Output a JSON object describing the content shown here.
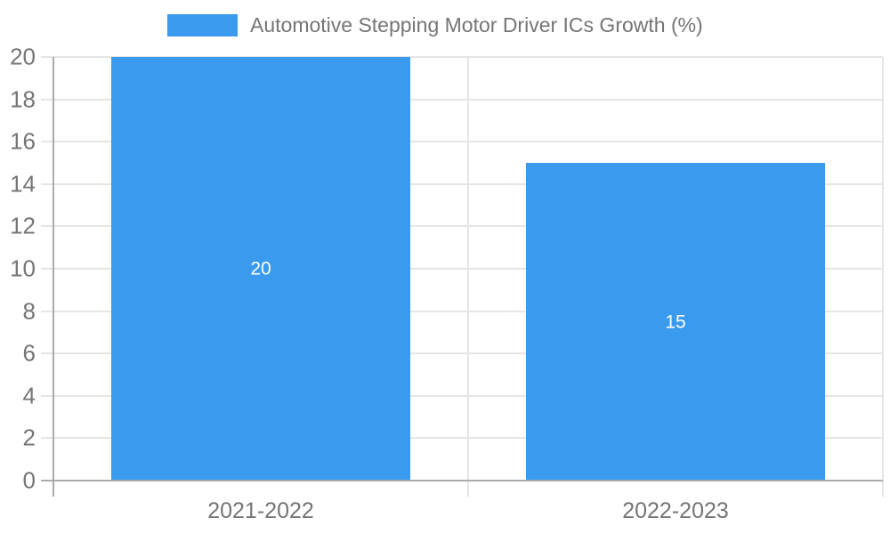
{
  "chart_data": {
    "type": "bar",
    "title": "",
    "categories": [
      "2021-2022",
      "2022-2023"
    ],
    "series": [
      {
        "name": "Automotive Stepping Motor Driver ICs Growth (%)",
        "values": [
          20,
          15
        ]
      }
    ],
    "data_labels": [
      "20",
      "15"
    ],
    "xlabel": "",
    "ylabel": "",
    "ylim": [
      0,
      20
    ],
    "ytick_step": 2,
    "grid": true,
    "legend_position": "top-center",
    "colors": {
      "bar": "#399AEE",
      "text": "#757575",
      "gridline": "#E5E5E5",
      "axis": "#ABABAB",
      "data_label": "#FFFFFF",
      "background": "#FFFFFF"
    }
  }
}
